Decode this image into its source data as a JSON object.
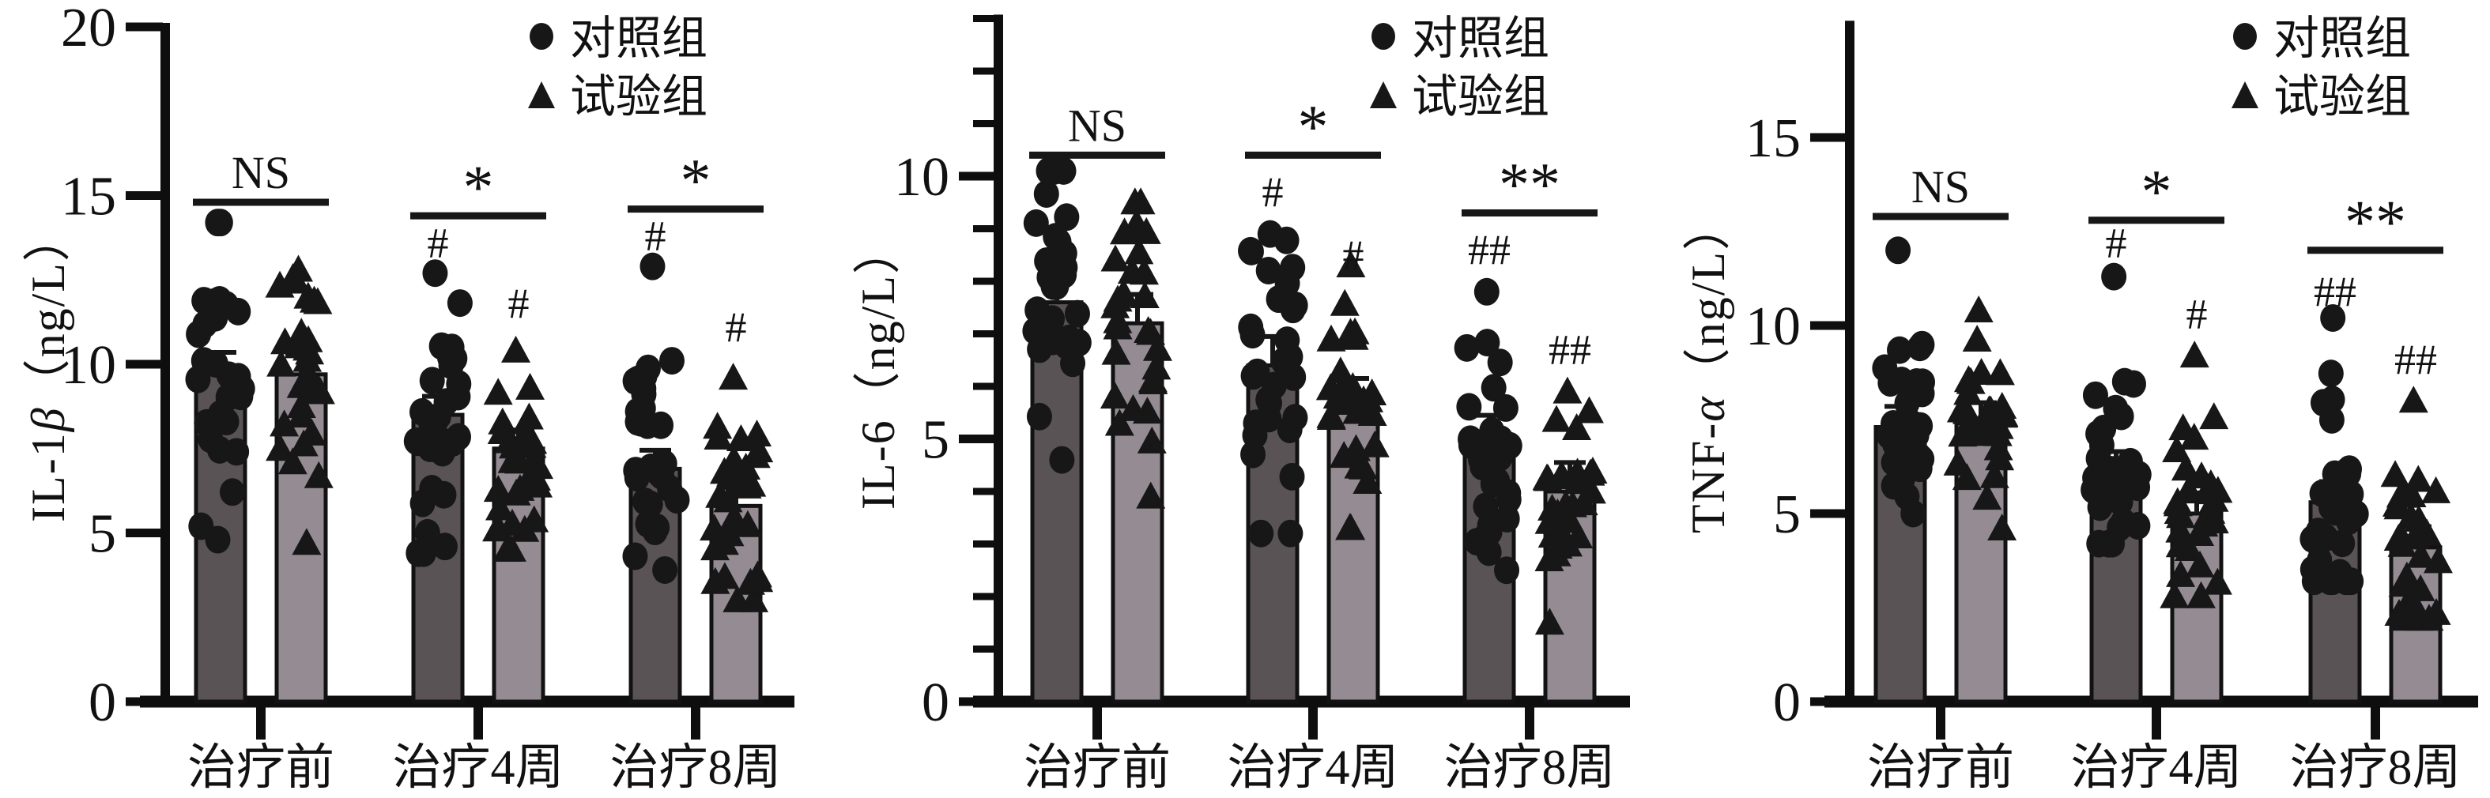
{
  "figure_name": "inflammatory-cytokine-comparison",
  "legend": {
    "items": [
      {
        "marker": "circle",
        "label": "对照组"
      },
      {
        "marker": "triangle",
        "label": "试验组"
      }
    ]
  },
  "colors": {
    "control_bar": "#595356",
    "test_bar": "#948C92",
    "marker": "#171717",
    "axis": "#0e0e0e",
    "text": "#111111"
  },
  "chart_data": [
    {
      "type": "bar",
      "id": "il1b",
      "ylabel": {
        "prefix": "IL-1",
        "greek": "β",
        "suffix": "（ng/L）"
      },
      "categories": [
        "治疗前",
        "治疗4周",
        "治疗8周"
      ],
      "ylim": [
        0,
        20
      ],
      "ymax_axis": 20,
      "yticks": [
        0,
        5,
        10,
        15,
        20
      ],
      "minor_step": 0,
      "n_per_group": 30,
      "series": [
        {
          "name": "对照组",
          "key": "control",
          "marker": "circle",
          "values": [
            9.8,
            8.5,
            6.9
          ],
          "sd": [
            2.0,
            1.9,
            1.8
          ],
          "range": [
            [
              4.8,
              14.2
            ],
            [
              4.4,
              12.7
            ],
            [
              3.9,
              12.9
            ]
          ]
        },
        {
          "name": "试验组",
          "key": "test",
          "marker": "triangle",
          "values": [
            9.7,
            7.5,
            5.8
          ],
          "sd": [
            1.9,
            1.5,
            1.5
          ],
          "range": [
            [
              4.7,
              12.8
            ],
            [
              4.5,
              10.4
            ],
            [
              3.0,
              9.6
            ]
          ]
        }
      ],
      "annotations": {
        "group_sig": [
          "NS",
          "*",
          "*"
        ],
        "sig_line_y": [
          14.8,
          14.4,
          14.6
        ],
        "hash_ctrl": [
          "",
          "#",
          "#"
        ],
        "hash_ctrl_y": [
          0,
          13.6,
          13.8
        ],
        "hash_test": [
          "",
          "#",
          "#"
        ],
        "hash_test_y": [
          0,
          11.8,
          11.1
        ]
      }
    },
    {
      "type": "bar",
      "id": "il6",
      "ylabel": {
        "prefix": "IL-6",
        "greek": "",
        "suffix": "（ng/L）"
      },
      "categories": [
        "治疗前",
        "治疗4周",
        "治疗8周"
      ],
      "ylim": [
        0,
        13
      ],
      "ymax_axis": 13,
      "yticks": [
        0,
        5,
        10
      ],
      "minor_step": 1,
      "n_per_group": 30,
      "series": [
        {
          "name": "对照组",
          "key": "control",
          "marker": "circle",
          "values": [
            7.6,
            6.4,
            4.9
          ],
          "sd": [
            1.3,
            1.5,
            1.2
          ],
          "range": [
            [
              4.6,
              10.1
            ],
            [
              3.2,
              8.9
            ],
            [
              2.5,
              7.8
            ]
          ]
        },
        {
          "name": "试验组",
          "key": "test",
          "marker": "triangle",
          "values": [
            7.2,
            5.6,
            4.0
          ],
          "sd": [
            1.4,
            1.2,
            1.0
          ],
          "range": [
            [
              3.9,
              9.5
            ],
            [
              3.3,
              8.3
            ],
            [
              1.5,
              5.9
            ]
          ]
        }
      ],
      "annotations": {
        "group_sig": [
          "NS",
          "*",
          "**"
        ],
        "sig_line_y": [
          10.4,
          10.4,
          9.3
        ],
        "hash_ctrl": [
          "",
          "#",
          "##"
        ],
        "hash_ctrl_y": [
          0,
          9.7,
          8.6
        ],
        "hash_test": [
          "",
          "#",
          "##"
        ],
        "hash_test_y": [
          0,
          8.5,
          6.7
        ]
      }
    },
    {
      "type": "bar",
      "id": "tnfa",
      "ylabel": {
        "prefix": "TNF-",
        "greek": "α",
        "suffix": "（ng/L）"
      },
      "categories": [
        "治疗前",
        "治疗4周",
        "治疗8周"
      ],
      "ylim": [
        0,
        18
      ],
      "ymax_axis": 18,
      "yticks": [
        0,
        5,
        10,
        15
      ],
      "minor_step": 0,
      "n_per_group": 30,
      "series": [
        {
          "name": "对照组",
          "key": "control",
          "marker": "circle",
          "values": [
            7.3,
            6.1,
            5.3
          ],
          "sd": [
            1.5,
            1.5,
            1.6
          ],
          "range": [
            [
              5.0,
              12.0
            ],
            [
              4.2,
              11.3
            ],
            [
              3.2,
              10.2
            ]
          ]
        },
        {
          "name": "试验组",
          "key": "test",
          "marker": "triangle",
          "values": [
            7.4,
            5.0,
            4.1
          ],
          "sd": [
            1.4,
            1.3,
            1.3
          ],
          "range": [
            [
              4.6,
              10.4
            ],
            [
              2.8,
              9.2
            ],
            [
              2.2,
              8.0
            ]
          ]
        }
      ],
      "annotations": {
        "group_sig": [
          "NS",
          "*",
          "**"
        ],
        "sig_line_y": [
          12.9,
          12.8,
          12.0
        ],
        "hash_ctrl": [
          "",
          "#",
          "##"
        ],
        "hash_ctrl_y": [
          0,
          12.2,
          10.9
        ],
        "hash_test": [
          "",
          "#",
          "##"
        ],
        "hash_test_y": [
          0,
          10.3,
          9.1
        ]
      }
    }
  ]
}
